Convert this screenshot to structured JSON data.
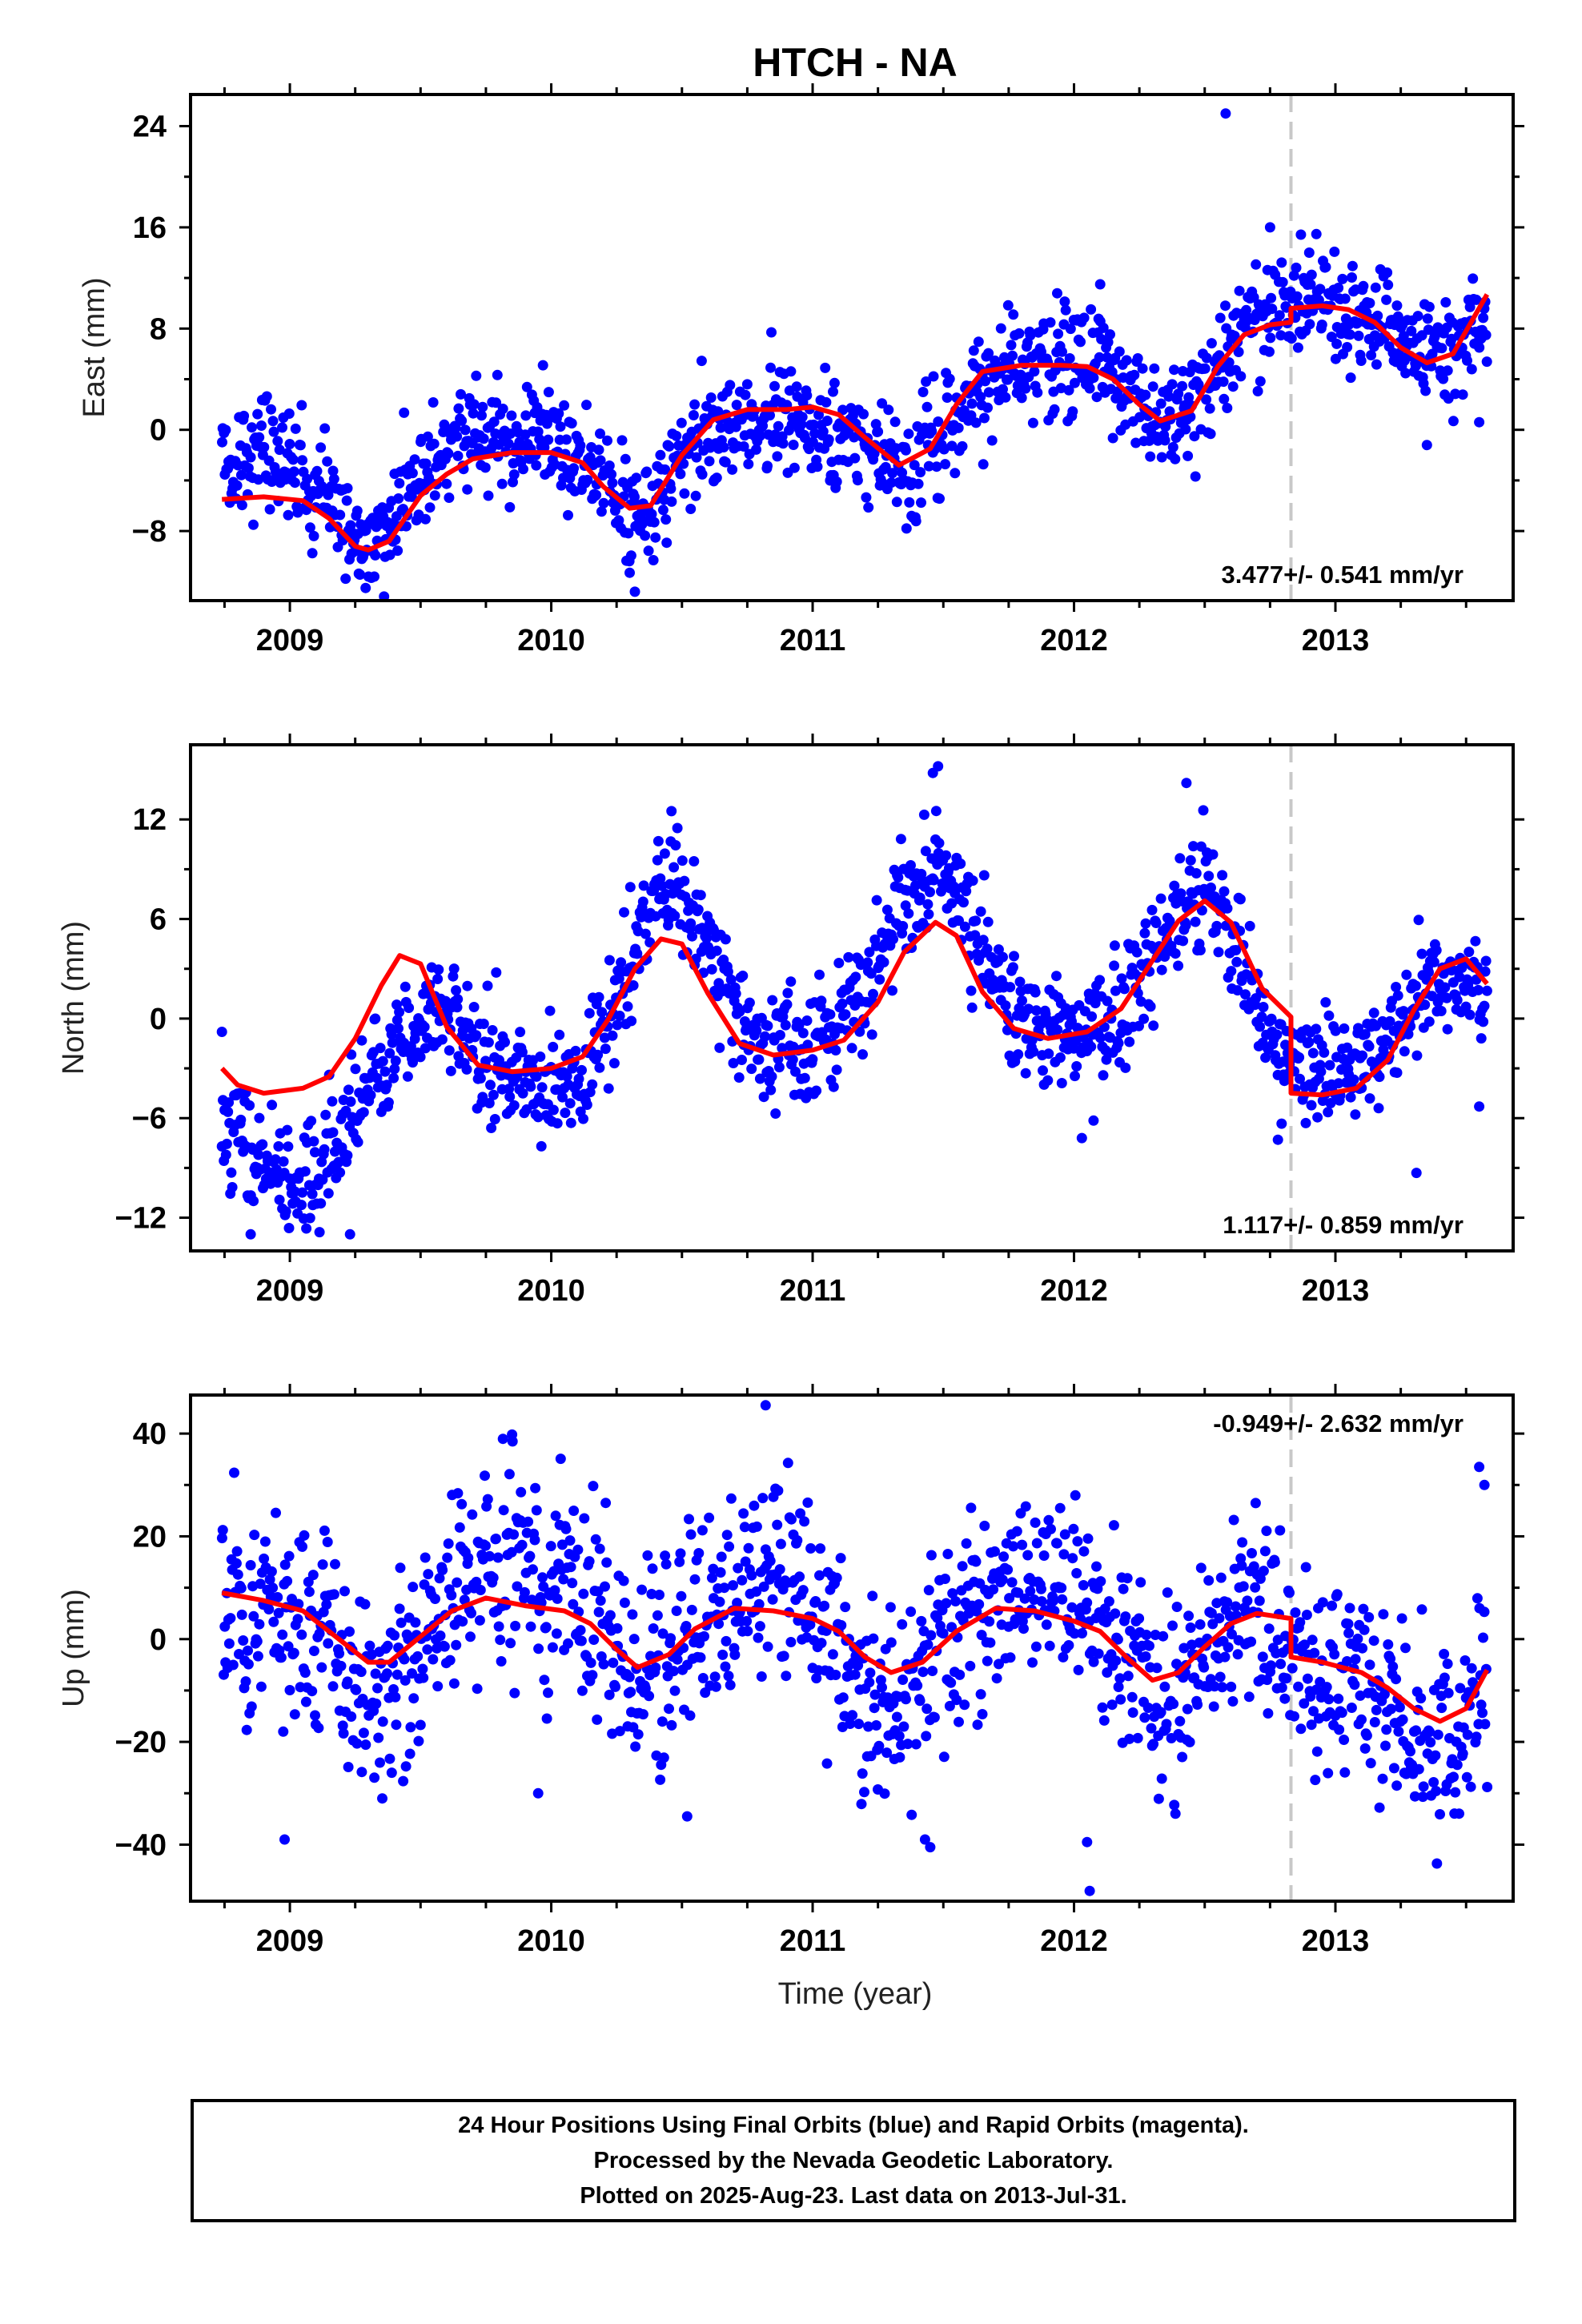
{
  "title": "HTCH - NA",
  "xlabel": "Time (year)",
  "colors": {
    "data": "#0000ff",
    "model": "#ff0000",
    "offset": "#c8c8c8",
    "frame": "#000000"
  },
  "footer": {
    "line1": "24 Hour Positions Using Final Orbits (blue) and Rapid Orbits (magenta).",
    "line2": "Processed by the Nevada Geodetic Laboratory.",
    "line3": "Plotted on 2025-Aug-23. Last data on 2013-Jul-31."
  },
  "chart_data": [
    {
      "type": "scatter",
      "component": "east",
      "ylabel": "East (mm)",
      "rate_text": "3.477+/- 0.541 mm/yr",
      "xlim": [
        2008.62,
        2013.68
      ],
      "ylim": [
        -13.5,
        26.5
      ],
      "xticks": [
        2009,
        2010,
        2011,
        2012,
        2013
      ],
      "yticks": [
        -8,
        0,
        8,
        16,
        24
      ],
      "offset_epoch": 2012.83,
      "model": {
        "x": [
          2008.74,
          2008.9,
          2009.05,
          2009.15,
          2009.25,
          2009.3,
          2009.38,
          2009.5,
          2009.6,
          2009.7,
          2009.85,
          2010.0,
          2010.12,
          2010.2,
          2010.3,
          2010.38,
          2010.5,
          2010.62,
          2010.75,
          2010.9,
          2011.0,
          2011.1,
          2011.2,
          2011.33,
          2011.45,
          2011.55,
          2011.65,
          2011.8,
          2011.95,
          2012.05,
          2012.15,
          2012.25,
          2012.33,
          2012.45,
          2012.55,
          2012.65,
          2012.75,
          2012.8299,
          2012.83,
          2012.95,
          2013.05,
          2013.15,
          2013.25,
          2013.35,
          2013.45,
          2013.58
        ],
        "y": [
          -5.5,
          -5.3,
          -5.6,
          -7.0,
          -9.2,
          -9.5,
          -8.8,
          -5.2,
          -3.5,
          -2.3,
          -1.8,
          -1.8,
          -2.6,
          -4.5,
          -6.2,
          -6.0,
          -2.0,
          0.8,
          1.6,
          1.6,
          1.8,
          1.2,
          -0.6,
          -2.8,
          -1.5,
          2.0,
          4.6,
          5.1,
          5.1,
          5.0,
          4.0,
          2.0,
          0.7,
          1.5,
          5.0,
          7.5,
          8.3,
          8.5,
          9.6,
          9.8,
          9.5,
          8.5,
          6.5,
          5.3,
          6.0,
          10.7
        ]
      },
      "points": {
        "knots_x": [
          2008.74,
          2008.9,
          2009.05,
          2009.15,
          2009.25,
          2009.3,
          2009.38,
          2009.5,
          2009.6,
          2009.7,
          2009.85,
          2010.0,
          2010.12,
          2010.2,
          2010.3,
          2010.38,
          2010.5,
          2010.62,
          2010.75,
          2010.9,
          2011.0,
          2011.1,
          2011.2,
          2011.33,
          2011.45,
          2011.55,
          2011.65,
          2011.8,
          2011.95,
          2012.05,
          2012.15,
          2012.25,
          2012.33,
          2012.45,
          2012.55,
          2012.65,
          2012.75,
          2012.83,
          2012.95,
          2013.05,
          2013.15,
          2013.25,
          2013.35,
          2013.45,
          2013.58
        ],
        "knots_y": [
          -3.0,
          -2.0,
          -3.5,
          -5.5,
          -9.0,
          -9.0,
          -7.5,
          -4.0,
          -1.5,
          -0.5,
          -1.0,
          -1.5,
          -2.5,
          -4.0,
          -6.5,
          -6.5,
          -2.0,
          -0.5,
          0.5,
          0.5,
          0.5,
          -1.0,
          -1.5,
          -3.0,
          -2.0,
          1.5,
          4.0,
          5.0,
          5.5,
          5.5,
          4.5,
          2.0,
          0.5,
          1.5,
          5.0,
          8.5,
          9.5,
          9.8,
          9.8,
          9.0,
          8.5,
          7.5,
          6.0,
          6.5,
          8.5
        ],
        "scatter_sd": 2.2,
        "start": 2008.74,
        "end": 2013.58,
        "count": 1320
      },
      "extremes": [
        [
          2012.58,
          25.0
        ],
        [
          2012.75,
          16.0
        ],
        [
          2012.9,
          14.0
        ],
        [
          2009.29,
          -12.5
        ],
        [
          2010.32,
          -12.8
        ],
        [
          2010.3,
          -11.3
        ],
        [
          2012.1,
          11.5
        ],
        [
          2013.35,
          -1.2
        ],
        [
          2013.55,
          0.6
        ]
      ]
    },
    {
      "type": "scatter",
      "component": "north",
      "ylabel": "North (mm)",
      "rate_text": "1.117+/- 0.859 mm/yr",
      "xlim": [
        2008.62,
        2013.68
      ],
      "ylim": [
        -14.0,
        16.5
      ],
      "xticks": [
        2009,
        2010,
        2011,
        2012,
        2013
      ],
      "yticks": [
        -12,
        -6,
        0,
        6,
        12
      ],
      "offset_epoch": 2012.83,
      "model": {
        "x": [
          2008.74,
          2008.8,
          2008.9,
          2009.05,
          2009.15,
          2009.25,
          2009.35,
          2009.42,
          2009.5,
          2009.6,
          2009.72,
          2009.85,
          2010.0,
          2010.12,
          2010.22,
          2010.32,
          2010.42,
          2010.5,
          2010.6,
          2010.72,
          2010.85,
          2011.0,
          2011.12,
          2011.25,
          2011.35,
          2011.47,
          2011.55,
          2011.65,
          2011.77,
          2011.9,
          2012.05,
          2012.18,
          2012.3,
          2012.4,
          2012.5,
          2012.6,
          2012.72,
          2012.8299,
          2012.83,
          2012.95,
          2013.08,
          2013.2,
          2013.3,
          2013.4,
          2013.5,
          2013.58
        ],
        "y": [
          -3.0,
          -4.0,
          -4.5,
          -4.2,
          -3.5,
          -1.2,
          2.0,
          3.8,
          3.3,
          -0.5,
          -2.8,
          -3.2,
          -3.0,
          -2.3,
          0.0,
          3.0,
          4.8,
          4.5,
          1.5,
          -1.5,
          -2.2,
          -1.9,
          -1.3,
          1.0,
          4.0,
          5.8,
          5.0,
          1.6,
          -0.6,
          -1.2,
          -0.8,
          0.6,
          3.5,
          5.9,
          7.1,
          5.8,
          1.8,
          0.1,
          -4.5,
          -4.6,
          -4.2,
          -2.5,
          0.5,
          3.0,
          3.6,
          2.1
        ]
      },
      "points": {
        "knots_x": [
          2008.74,
          2008.8,
          2008.9,
          2009.05,
          2009.15,
          2009.25,
          2009.35,
          2009.42,
          2009.5,
          2009.6,
          2009.72,
          2009.85,
          2010.0,
          2010.12,
          2010.22,
          2010.32,
          2010.42,
          2010.5,
          2010.6,
          2010.72,
          2010.85,
          2011.0,
          2011.12,
          2011.25,
          2011.35,
          2011.47,
          2011.55,
          2011.65,
          2011.77,
          2011.9,
          2012.05,
          2012.18,
          2012.3,
          2012.4,
          2012.5,
          2012.6,
          2012.72,
          2012.83,
          2012.95,
          2013.08,
          2013.2,
          2013.3,
          2013.4,
          2013.5,
          2013.58
        ],
        "knots_y": [
          -7.5,
          -8.0,
          -9.0,
          -9.5,
          -8.5,
          -6.0,
          -3.0,
          -1.0,
          0.0,
          0.5,
          -2.0,
          -3.5,
          -4.0,
          -3.5,
          -0.5,
          4.0,
          7.0,
          7.5,
          5.0,
          0.0,
          -1.5,
          -1.5,
          0.0,
          3.5,
          6.5,
          9.0,
          8.0,
          4.0,
          0.5,
          -1.0,
          -1.0,
          0.5,
          3.5,
          6.5,
          7.5,
          5.5,
          0.0,
          -2.5,
          -3.0,
          -3.0,
          -1.5,
          0.5,
          2.0,
          2.5,
          2.0
        ],
        "scatter_sd": 1.7,
        "start": 2008.74,
        "end": 2013.58,
        "count": 1320
      },
      "extremes": [
        [
          2011.48,
          15.2
        ],
        [
          2011.46,
          14.8
        ],
        [
          2012.43,
          14.2
        ],
        [
          2010.46,
          12.5
        ],
        [
          2008.85,
          -13.0
        ],
        [
          2009.23,
          -13.0
        ],
        [
          2013.31,
          -9.3
        ],
        [
          2013.55,
          -5.3
        ],
        [
          2012.78,
          -7.3
        ],
        [
          2012.03,
          -7.2
        ],
        [
          2008.74,
          -0.8
        ]
      ]
    },
    {
      "type": "scatter",
      "component": "up",
      "ylabel": "Up (mm)",
      "rate_text": "-0.949+/- 2.632 mm/yr",
      "xlim": [
        2008.62,
        2013.68
      ],
      "ylim": [
        -51.0,
        47.5
      ],
      "xticks": [
        2009,
        2010,
        2011,
        2012,
        2013
      ],
      "yticks": [
        -40,
        -20,
        0,
        20,
        40
      ],
      "offset_epoch": 2012.83,
      "model": {
        "x": [
          2008.74,
          2008.9,
          2009.05,
          2009.2,
          2009.3,
          2009.38,
          2009.5,
          2009.62,
          2009.75,
          2009.9,
          2010.05,
          2010.15,
          2010.25,
          2010.33,
          2010.45,
          2010.55,
          2010.7,
          2010.85,
          2011.0,
          2011.1,
          2011.2,
          2011.3,
          2011.42,
          2011.55,
          2011.7,
          2011.85,
          2012.0,
          2012.1,
          2012.2,
          2012.3,
          2012.4,
          2012.5,
          2012.6,
          2012.7,
          2012.8299,
          2012.83,
          2012.95,
          2013.1,
          2013.2,
          2013.3,
          2013.4,
          2013.5,
          2013.58
        ],
        "y": [
          9.0,
          7.5,
          5.5,
          -0.5,
          -4.5,
          -4.5,
          0.5,
          5.5,
          8.0,
          6.5,
          5.5,
          3.0,
          -2.0,
          -5.5,
          -3.0,
          2.0,
          6.0,
          5.5,
          4.0,
          1.5,
          -3.5,
          -6.5,
          -4.5,
          1.5,
          6.0,
          5.5,
          3.5,
          1.5,
          -3.5,
          -8.0,
          -6.5,
          -1.5,
          3.0,
          5.0,
          4.0,
          -3.5,
          -4.5,
          -6.5,
          -9.5,
          -13.5,
          -16.0,
          -13.5,
          -6.0
        ]
      },
      "points": {
        "knots_x": [
          2008.74,
          2008.9,
          2009.05,
          2009.2,
          2009.3,
          2009.38,
          2009.5,
          2009.62,
          2009.75,
          2009.9,
          2010.05,
          2010.15,
          2010.25,
          2010.33,
          2010.45,
          2010.55,
          2010.7,
          2010.85,
          2011.0,
          2011.1,
          2011.2,
          2011.3,
          2011.42,
          2011.55,
          2011.7,
          2011.85,
          2012.0,
          2012.1,
          2012.2,
          2012.3,
          2012.4,
          2012.5,
          2012.6,
          2012.7,
          2012.83,
          2012.95,
          2013.1,
          2013.2,
          2013.3,
          2013.4,
          2013.5,
          2013.58
        ],
        "knots_y": [
          5.0,
          4.0,
          2.0,
          -3.0,
          -10.0,
          -12.0,
          -5.0,
          5.0,
          12.0,
          14.0,
          12.0,
          6.0,
          -2.0,
          -6.0,
          -4.0,
          2.0,
          10.0,
          12.0,
          6.0,
          -2.0,
          -10.0,
          -14.0,
          -10.0,
          0.0,
          10.0,
          12.0,
          8.0,
          4.0,
          -2.0,
          -12.0,
          -12.0,
          -4.0,
          4.0,
          8.0,
          -2.0,
          -6.0,
          -8.0,
          -12.0,
          -18.0,
          -22.0,
          -18.0,
          -5.0
        ],
        "scatter_sd": 9.5,
        "start": 2008.74,
        "end": 2013.58,
        "count": 1320
      },
      "extremes": [
        [
          2010.82,
          45.5
        ],
        [
          2009.85,
          39.8
        ],
        [
          2012.06,
          -49.0
        ],
        [
          2012.05,
          -39.5
        ],
        [
          2008.98,
          -39.0
        ],
        [
          2011.45,
          -40.5
        ],
        [
          2011.43,
          -39.0
        ],
        [
          2010.52,
          -34.5
        ],
        [
          2013.55,
          33.5
        ],
        [
          2013.57,
          30.0
        ],
        [
          2009.95,
          -30.0
        ]
      ]
    }
  ]
}
